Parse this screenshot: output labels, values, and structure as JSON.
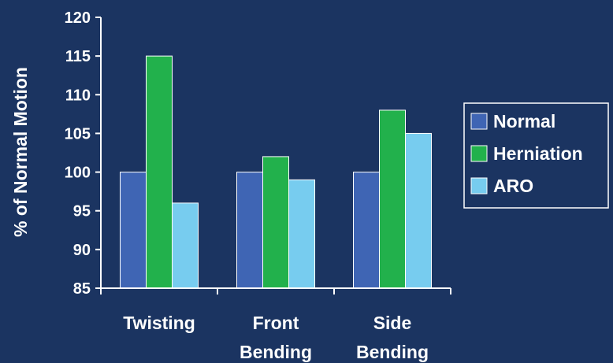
{
  "chart_data": {
    "type": "bar",
    "title": "",
    "xlabel": "",
    "ylabel": "% of Normal Motion",
    "categories": [
      [
        "Twisting"
      ],
      [
        "Front",
        "Bending"
      ],
      [
        "Side",
        "Bending"
      ]
    ],
    "series": [
      {
        "name": "Normal",
        "color": "#3F65B4",
        "values": [
          100,
          100,
          100
        ]
      },
      {
        "name": "Herniation",
        "color": "#22B14C",
        "values": [
          115,
          102,
          108
        ]
      },
      {
        "name": "ARO",
        "color": "#77CCEF",
        "values": [
          96,
          99,
          105
        ]
      }
    ],
    "ylim": [
      85,
      120
    ],
    "yticks": [
      85,
      90,
      95,
      100,
      105,
      110,
      115,
      120
    ],
    "grid": false,
    "legend": "right",
    "colors": {
      "background": "#1B3461",
      "axis": "#ffffff",
      "bar_border": "#ffffff"
    }
  }
}
